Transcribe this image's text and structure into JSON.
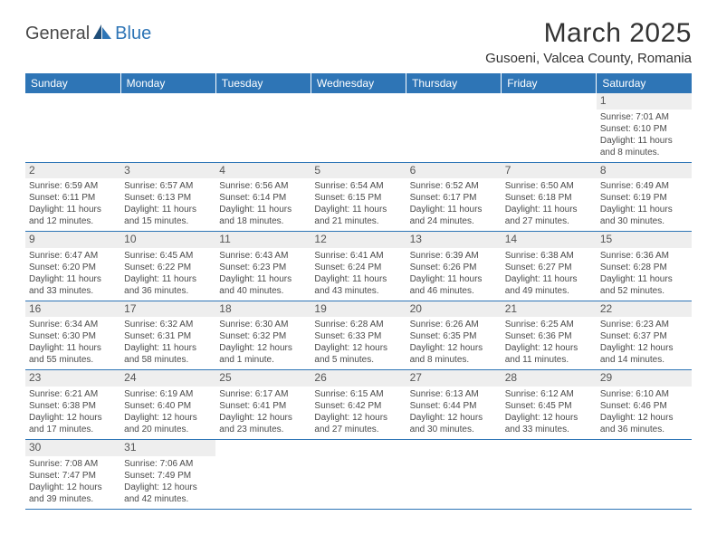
{
  "logo": {
    "text1": "General",
    "text2": "Blue"
  },
  "title": "March 2025",
  "location": "Gusoeni, Valcea County, Romania",
  "colors": {
    "header_bg": "#2e75b6",
    "header_text": "#ffffff",
    "daynum_bg": "#eeeeee",
    "row_border": "#2e75b6",
    "logo_blue": "#2e75b6",
    "text": "#4a4a4a"
  },
  "weekdays": [
    "Sunday",
    "Monday",
    "Tuesday",
    "Wednesday",
    "Thursday",
    "Friday",
    "Saturday"
  ],
  "weeks": [
    [
      null,
      null,
      null,
      null,
      null,
      null,
      {
        "d": "1",
        "sr": "Sunrise: 7:01 AM",
        "ss": "Sunset: 6:10 PM",
        "dl": "Daylight: 11 hours and 8 minutes."
      }
    ],
    [
      {
        "d": "2",
        "sr": "Sunrise: 6:59 AM",
        "ss": "Sunset: 6:11 PM",
        "dl": "Daylight: 11 hours and 12 minutes."
      },
      {
        "d": "3",
        "sr": "Sunrise: 6:57 AM",
        "ss": "Sunset: 6:13 PM",
        "dl": "Daylight: 11 hours and 15 minutes."
      },
      {
        "d": "4",
        "sr": "Sunrise: 6:56 AM",
        "ss": "Sunset: 6:14 PM",
        "dl": "Daylight: 11 hours and 18 minutes."
      },
      {
        "d": "5",
        "sr": "Sunrise: 6:54 AM",
        "ss": "Sunset: 6:15 PM",
        "dl": "Daylight: 11 hours and 21 minutes."
      },
      {
        "d": "6",
        "sr": "Sunrise: 6:52 AM",
        "ss": "Sunset: 6:17 PM",
        "dl": "Daylight: 11 hours and 24 minutes."
      },
      {
        "d": "7",
        "sr": "Sunrise: 6:50 AM",
        "ss": "Sunset: 6:18 PM",
        "dl": "Daylight: 11 hours and 27 minutes."
      },
      {
        "d": "8",
        "sr": "Sunrise: 6:49 AM",
        "ss": "Sunset: 6:19 PM",
        "dl": "Daylight: 11 hours and 30 minutes."
      }
    ],
    [
      {
        "d": "9",
        "sr": "Sunrise: 6:47 AM",
        "ss": "Sunset: 6:20 PM",
        "dl": "Daylight: 11 hours and 33 minutes."
      },
      {
        "d": "10",
        "sr": "Sunrise: 6:45 AM",
        "ss": "Sunset: 6:22 PM",
        "dl": "Daylight: 11 hours and 36 minutes."
      },
      {
        "d": "11",
        "sr": "Sunrise: 6:43 AM",
        "ss": "Sunset: 6:23 PM",
        "dl": "Daylight: 11 hours and 40 minutes."
      },
      {
        "d": "12",
        "sr": "Sunrise: 6:41 AM",
        "ss": "Sunset: 6:24 PM",
        "dl": "Daylight: 11 hours and 43 minutes."
      },
      {
        "d": "13",
        "sr": "Sunrise: 6:39 AM",
        "ss": "Sunset: 6:26 PM",
        "dl": "Daylight: 11 hours and 46 minutes."
      },
      {
        "d": "14",
        "sr": "Sunrise: 6:38 AM",
        "ss": "Sunset: 6:27 PM",
        "dl": "Daylight: 11 hours and 49 minutes."
      },
      {
        "d": "15",
        "sr": "Sunrise: 6:36 AM",
        "ss": "Sunset: 6:28 PM",
        "dl": "Daylight: 11 hours and 52 minutes."
      }
    ],
    [
      {
        "d": "16",
        "sr": "Sunrise: 6:34 AM",
        "ss": "Sunset: 6:30 PM",
        "dl": "Daylight: 11 hours and 55 minutes."
      },
      {
        "d": "17",
        "sr": "Sunrise: 6:32 AM",
        "ss": "Sunset: 6:31 PM",
        "dl": "Daylight: 11 hours and 58 minutes."
      },
      {
        "d": "18",
        "sr": "Sunrise: 6:30 AM",
        "ss": "Sunset: 6:32 PM",
        "dl": "Daylight: 12 hours and 1 minute."
      },
      {
        "d": "19",
        "sr": "Sunrise: 6:28 AM",
        "ss": "Sunset: 6:33 PM",
        "dl": "Daylight: 12 hours and 5 minutes."
      },
      {
        "d": "20",
        "sr": "Sunrise: 6:26 AM",
        "ss": "Sunset: 6:35 PM",
        "dl": "Daylight: 12 hours and 8 minutes."
      },
      {
        "d": "21",
        "sr": "Sunrise: 6:25 AM",
        "ss": "Sunset: 6:36 PM",
        "dl": "Daylight: 12 hours and 11 minutes."
      },
      {
        "d": "22",
        "sr": "Sunrise: 6:23 AM",
        "ss": "Sunset: 6:37 PM",
        "dl": "Daylight: 12 hours and 14 minutes."
      }
    ],
    [
      {
        "d": "23",
        "sr": "Sunrise: 6:21 AM",
        "ss": "Sunset: 6:38 PM",
        "dl": "Daylight: 12 hours and 17 minutes."
      },
      {
        "d": "24",
        "sr": "Sunrise: 6:19 AM",
        "ss": "Sunset: 6:40 PM",
        "dl": "Daylight: 12 hours and 20 minutes."
      },
      {
        "d": "25",
        "sr": "Sunrise: 6:17 AM",
        "ss": "Sunset: 6:41 PM",
        "dl": "Daylight: 12 hours and 23 minutes."
      },
      {
        "d": "26",
        "sr": "Sunrise: 6:15 AM",
        "ss": "Sunset: 6:42 PM",
        "dl": "Daylight: 12 hours and 27 minutes."
      },
      {
        "d": "27",
        "sr": "Sunrise: 6:13 AM",
        "ss": "Sunset: 6:44 PM",
        "dl": "Daylight: 12 hours and 30 minutes."
      },
      {
        "d": "28",
        "sr": "Sunrise: 6:12 AM",
        "ss": "Sunset: 6:45 PM",
        "dl": "Daylight: 12 hours and 33 minutes."
      },
      {
        "d": "29",
        "sr": "Sunrise: 6:10 AM",
        "ss": "Sunset: 6:46 PM",
        "dl": "Daylight: 12 hours and 36 minutes."
      }
    ],
    [
      {
        "d": "30",
        "sr": "Sunrise: 7:08 AM",
        "ss": "Sunset: 7:47 PM",
        "dl": "Daylight: 12 hours and 39 minutes."
      },
      {
        "d": "31",
        "sr": "Sunrise: 7:06 AM",
        "ss": "Sunset: 7:49 PM",
        "dl": "Daylight: 12 hours and 42 minutes."
      },
      null,
      null,
      null,
      null,
      null
    ]
  ]
}
